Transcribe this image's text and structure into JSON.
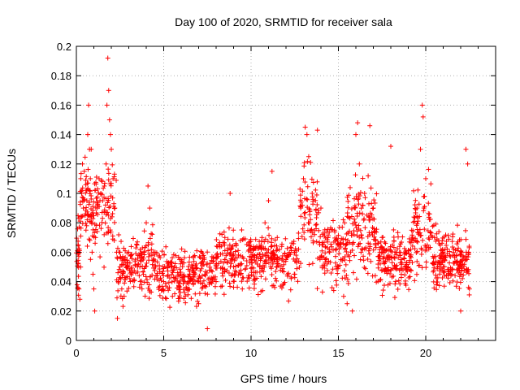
{
  "chart_data": {
    "type": "scatter",
    "title": "Day 100 of 2020, SRMTID for receiver sala",
    "xlabel": "GPS time / hours",
    "ylabel": "SRMTID / TECUs",
    "xlim": [
      0,
      24
    ],
    "ylim": [
      0,
      0.2
    ],
    "x_ticks": [
      0,
      5,
      10,
      15,
      20
    ],
    "y_ticks": [
      0,
      0.02,
      0.04,
      0.06,
      0.08,
      0.1,
      0.12,
      0.14,
      0.16,
      0.18,
      0.2
    ],
    "x_tick_labels": [
      "0",
      "5",
      "10",
      "15",
      "20"
    ],
    "y_tick_labels": [
      "0",
      "0.02",
      "0.04",
      "0.06",
      "0.08",
      "0.1",
      "0.12",
      "0.14",
      "0.16",
      "0.18",
      "0.2"
    ],
    "grid": true,
    "marker": "+",
    "point_color": "#ff0000",
    "x_range_of_points": [
      0,
      22.5
    ],
    "series": [
      {
        "name": "SRMTID",
        "points": [
          [
            0.1,
            0.065
          ],
          [
            0.15,
            0.035
          ],
          [
            0.2,
            0.028
          ],
          [
            0.25,
            0.11
          ],
          [
            0.3,
            0.1
          ],
          [
            0.35,
            0.12
          ],
          [
            0.4,
            0.09
          ],
          [
            0.45,
            0.115
          ],
          [
            0.5,
            0.085
          ],
          [
            0.55,
            0.075
          ],
          [
            0.6,
            0.095
          ],
          [
            0.65,
            0.14
          ],
          [
            0.7,
            0.16
          ],
          [
            0.75,
            0.13
          ],
          [
            0.8,
            0.11
          ],
          [
            0.85,
            0.13
          ],
          [
            0.9,
            0.06
          ],
          [
            0.95,
            0.045
          ],
          [
            1.0,
            0.035
          ],
          [
            1.05,
            0.02
          ],
          [
            1.1,
            0.07
          ],
          [
            1.2,
            0.09
          ],
          [
            1.3,
            0.11
          ],
          [
            1.4,
            0.1
          ],
          [
            1.5,
            0.095
          ],
          [
            1.6,
            0.105
          ],
          [
            1.7,
            0.12
          ],
          [
            1.75,
            0.16
          ],
          [
            1.8,
            0.192
          ],
          [
            1.85,
            0.17
          ],
          [
            1.9,
            0.15
          ],
          [
            1.95,
            0.14
          ],
          [
            2.0,
            0.13
          ],
          [
            2.1,
            0.11
          ],
          [
            2.2,
            0.09
          ],
          [
            2.3,
            0.06
          ],
          [
            2.35,
            0.015
          ],
          [
            2.4,
            0.04
          ],
          [
            2.5,
            0.05
          ],
          [
            2.6,
            0.035
          ],
          [
            3.0,
            0.06
          ],
          [
            3.5,
            0.05
          ],
          [
            4.0,
            0.08
          ],
          [
            4.1,
            0.105
          ],
          [
            4.2,
            0.09
          ],
          [
            4.5,
            0.06
          ],
          [
            5.0,
            0.04
          ],
          [
            5.5,
            0.03
          ],
          [
            6.0,
            0.055
          ],
          [
            6.5,
            0.045
          ],
          [
            7.0,
            0.025
          ],
          [
            7.5,
            0.008
          ],
          [
            8.0,
            0.04
          ],
          [
            8.5,
            0.07
          ],
          [
            8.8,
            0.1
          ],
          [
            9.0,
            0.05
          ],
          [
            9.5,
            0.035
          ],
          [
            10.0,
            0.06
          ],
          [
            10.5,
            0.05
          ],
          [
            10.8,
            0.08
          ],
          [
            11.0,
            0.095
          ],
          [
            11.2,
            0.115
          ],
          [
            11.5,
            0.07
          ],
          [
            12.0,
            0.055
          ],
          [
            12.5,
            0.045
          ],
          [
            13.0,
            0.11
          ],
          [
            13.1,
            0.145
          ],
          [
            13.2,
            0.14
          ],
          [
            13.3,
            0.125
          ],
          [
            13.5,
            0.1
          ],
          [
            13.8,
            0.143
          ],
          [
            14.0,
            0.09
          ],
          [
            14.5,
            0.06
          ],
          [
            15.0,
            0.05
          ],
          [
            15.3,
            0.03
          ],
          [
            15.5,
            0.025
          ],
          [
            15.8,
            0.02
          ],
          [
            16.0,
            0.14
          ],
          [
            16.1,
            0.148
          ],
          [
            16.2,
            0.12
          ],
          [
            16.5,
            0.1
          ],
          [
            16.8,
            0.146
          ],
          [
            17.0,
            0.09
          ],
          [
            17.5,
            0.07
          ],
          [
            18.0,
            0.132
          ],
          [
            18.5,
            0.06
          ],
          [
            19.0,
            0.05
          ],
          [
            19.5,
            0.09
          ],
          [
            19.7,
            0.13
          ],
          [
            19.8,
            0.16
          ],
          [
            19.85,
            0.152
          ],
          [
            20.0,
            0.11
          ],
          [
            20.5,
            0.07
          ],
          [
            21.0,
            0.05
          ],
          [
            21.5,
            0.045
          ],
          [
            22.0,
            0.02
          ],
          [
            22.3,
            0.13
          ],
          [
            22.4,
            0.12
          ],
          [
            22.45,
            0.06
          ],
          [
            22.5,
            0.035
          ]
        ]
      }
    ]
  }
}
